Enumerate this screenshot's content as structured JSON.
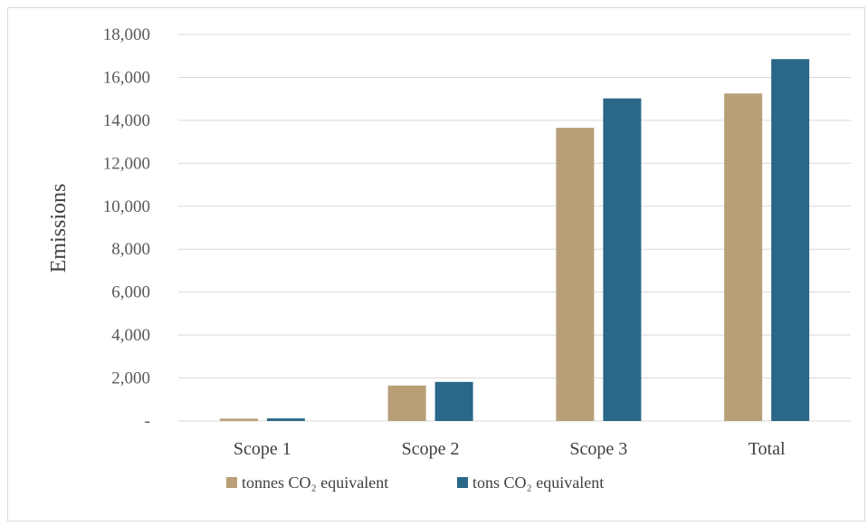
{
  "chart_data": {
    "type": "bar",
    "title": "",
    "xlabel": "",
    "ylabel": "Emissions",
    "categories": [
      "Scope 1",
      "Scope 2",
      "Scope 3",
      "Total"
    ],
    "series": [
      {
        "name": "tonnes CO₂ equivalent",
        "color": "#b89f78",
        "values": [
          110,
          1650,
          13650,
          15250
        ]
      },
      {
        "name": "tons CO₂ equivalent",
        "color": "#2a6788",
        "values": [
          120,
          1820,
          15020,
          16850
        ]
      }
    ],
    "ylim": [
      0,
      18000
    ],
    "ytick_values": [
      0,
      2000,
      4000,
      6000,
      8000,
      10000,
      12000,
      14000,
      16000,
      18000
    ],
    "ytick_labels": [
      "-",
      "2,000",
      "4,000",
      "6,000",
      "8,000",
      "10,000",
      "12,000",
      "14,000",
      "16,000",
      "18,000"
    ],
    "grid": true,
    "legend_position": "bottom"
  }
}
